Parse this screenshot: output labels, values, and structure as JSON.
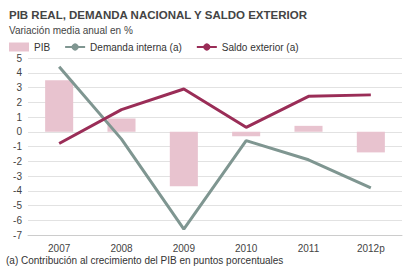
{
  "chart_data": {
    "type": "bar",
    "title": "PIB REAL, DEMANDA NACIONAL Y SALDO EXTERIOR",
    "subtitle": "Variación media anual en %",
    "annotations": [
      "(a) Contribución al crecimiento del PIB en puntos porcentuales"
    ],
    "categories": [
      "2007",
      "2008",
      "2009",
      "2010",
      "2011",
      "2012p"
    ],
    "series": [
      {
        "name": "PIB",
        "type": "bar",
        "color": "#e8c3cf",
        "values": [
          3.5,
          0.9,
          -3.7,
          -0.3,
          0.4,
          -1.4
        ]
      },
      {
        "name": "Demanda interna (a)",
        "type": "line",
        "color": "#7f9691",
        "values": [
          4.4,
          -0.5,
          -6.6,
          -0.6,
          -1.9,
          -3.8
        ]
      },
      {
        "name": "Saldo exterior (a)",
        "type": "line",
        "color": "#9a2d57",
        "values": [
          -0.8,
          1.5,
          2.9,
          0.3,
          2.4,
          2.5
        ]
      }
    ],
    "ylim": [
      -7,
      5
    ],
    "yticks": [
      -7,
      -6,
      -5,
      -4,
      -3,
      -2,
      -1,
      0,
      1,
      2,
      3,
      4,
      5
    ],
    "grid": true,
    "legend": "top-left"
  }
}
